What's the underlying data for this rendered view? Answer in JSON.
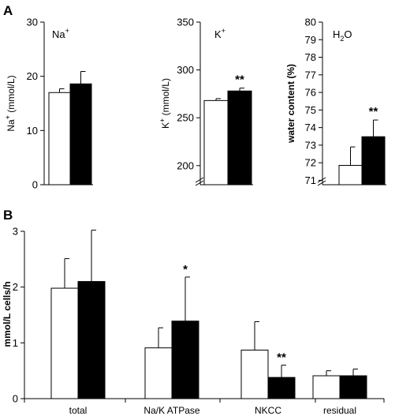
{
  "panel_a_letter": "A",
  "panel_b_letter": "B",
  "chart_data": [
    {
      "type": "bar",
      "panel": "A",
      "inset_base": "Na",
      "inset_sup": "+",
      "ylabel_base": "Na",
      "ylabel_sup": "+",
      "ylabel_rest": " (mmol/L)",
      "ylim": [
        0,
        30
      ],
      "yticks": [
        0,
        10,
        20,
        30
      ],
      "axis_break": false,
      "grid": false,
      "series": [
        {
          "fill": "#ffffff",
          "values": [
            17.0
          ],
          "errors": [
            0.7
          ]
        },
        {
          "fill": "#000000",
          "values": [
            18.6
          ],
          "errors": [
            2.3
          ]
        }
      ],
      "significance": ""
    },
    {
      "type": "bar",
      "panel": "A",
      "inset_base": "K",
      "inset_sup": "+",
      "ylabel_base": "K",
      "ylabel_sup": "+",
      "ylabel_rest": " (mmol/L)",
      "ylim": [
        180,
        350
      ],
      "yticks": [
        200,
        250,
        300,
        350
      ],
      "axis_break": true,
      "grid": false,
      "series": [
        {
          "fill": "#ffffff",
          "values": [
            268
          ],
          "errors": [
            2
          ]
        },
        {
          "fill": "#000000",
          "values": [
            278
          ],
          "errors": [
            3
          ]
        }
      ],
      "significance": "**"
    },
    {
      "type": "bar",
      "panel": "A",
      "inset_base": "H",
      "inset_sub": "2",
      "inset_rest": "O",
      "ylabel": "water content (%)",
      "ylim": [
        70.75,
        80
      ],
      "yticks": [
        71,
        72,
        73,
        74,
        75,
        76,
        77,
        78,
        79,
        80
      ],
      "axis_break": true,
      "grid": false,
      "series": [
        {
          "fill": "#ffffff",
          "values": [
            71.85
          ],
          "errors": [
            1.05
          ]
        },
        {
          "fill": "#000000",
          "values": [
            73.48
          ],
          "errors": [
            0.95
          ]
        }
      ],
      "significance": "**"
    },
    {
      "type": "bar",
      "panel": "B",
      "ylabel": "mmol/L cells/h",
      "categories": [
        "total",
        "Na/K ATPase",
        "NKCC",
        "residual"
      ],
      "ylim": [
        0,
        3
      ],
      "yticks": [
        0,
        1,
        2,
        3
      ],
      "grid": false,
      "series": [
        {
          "fill": "#ffffff",
          "values": [
            1.98,
            0.91,
            0.87,
            0.41
          ],
          "errors": [
            0.53,
            0.36,
            0.51,
            0.09
          ]
        },
        {
          "fill": "#000000",
          "values": [
            2.1,
            1.39,
            0.38,
            0.41
          ],
          "errors": [
            0.92,
            0.79,
            0.22,
            0.12
          ]
        }
      ],
      "significance": [
        "",
        "*",
        "**",
        ""
      ]
    }
  ]
}
